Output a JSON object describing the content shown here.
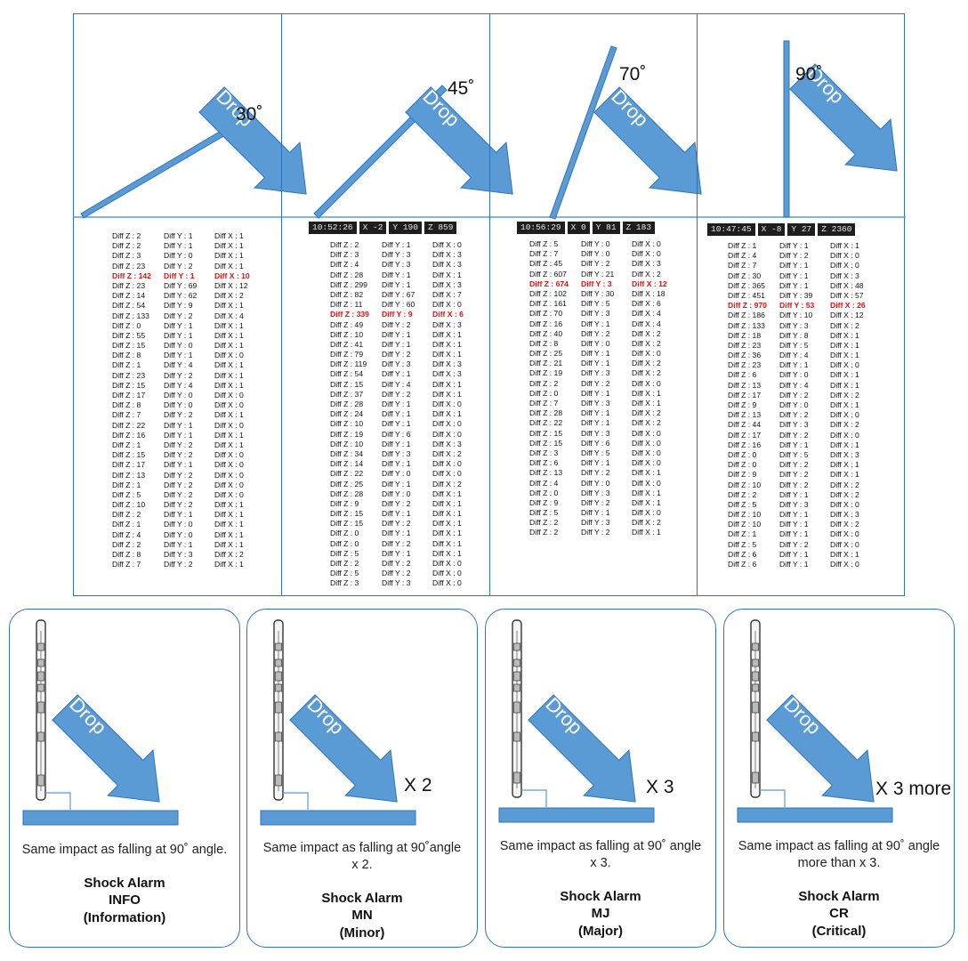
{
  "colors": {
    "accent": "#5b9bd5",
    "border": "#2e75b6",
    "highlight": "#e01010",
    "hud_bg": "#1e1e1e"
  },
  "arrow_label": "Drop",
  "panels": [
    {
      "angle_label": "30˚",
      "hud": null,
      "readings": [
        {
          "z": "Diff Z : 2",
          "y": "Diff Y : 1",
          "x": "Diff X : 1"
        },
        {
          "z": "Diff Z : 2",
          "y": "Diff Y : 1",
          "x": "Diff X : 1"
        },
        {
          "z": "Diff Z : 3",
          "y": "Diff Y : 0",
          "x": "Diff X : 1"
        },
        {
          "z": "Diff Z : 23",
          "y": "Diff Y : 2",
          "x": "Diff X : 1"
        },
        {
          "z": "Diff Z : 142",
          "y": "Diff Y : 1",
          "x": "Diff X : 10",
          "highlight": true
        },
        {
          "z": "Diff Z : 23",
          "y": "Diff Y : 69",
          "x": "Diff X : 12"
        },
        {
          "z": "Diff Z : 14",
          "y": "Diff Y : 62",
          "x": "Diff X : 2"
        },
        {
          "z": "Diff Z : 54",
          "y": "Diff Y : 9",
          "x": "Diff X : 1"
        },
        {
          "z": "Diff Z : 133",
          "y": "Diff Y : 2",
          "x": "Diff X : 4"
        },
        {
          "z": "Diff Z : 0",
          "y": "Diff Y : 1",
          "x": "Diff X : 1"
        },
        {
          "z": "Diff Z : 55",
          "y": "Diff Y : 1",
          "x": "Diff X : 1"
        },
        {
          "z": "Diff Z : 15",
          "y": "Diff Y : 0",
          "x": "Diff X : 1"
        },
        {
          "z": "Diff Z : 8",
          "y": "Diff Y : 1",
          "x": "Diff X : 0"
        },
        {
          "z": "Diff Z : 1",
          "y": "Diff Y : 4",
          "x": "Diff X : 1"
        },
        {
          "z": "Diff Z : 23",
          "y": "Diff Y : 2",
          "x": "Diff X : 1"
        },
        {
          "z": "Diff Z : 15",
          "y": "Diff Y : 4",
          "x": "Diff X : 1"
        },
        {
          "z": "Diff Z : 17",
          "y": "Diff Y : 0",
          "x": "Diff X : 0"
        },
        {
          "z": "Diff Z : 8",
          "y": "Diff Y : 0",
          "x": "Diff X : 0"
        },
        {
          "z": "Diff Z : 7",
          "y": "Diff Y : 2",
          "x": "Diff X : 1"
        },
        {
          "z": "Diff Z : 22",
          "y": "Diff Y : 1",
          "x": "Diff X : 0"
        },
        {
          "z": "Diff Z : 16",
          "y": "Diff Y : 1",
          "x": "Diff X : 1"
        },
        {
          "z": "Diff Z : 1",
          "y": "Diff Y : 2",
          "x": "Diff X : 1"
        },
        {
          "z": "Diff Z : 15",
          "y": "Diff Y : 2",
          "x": "Diff X : 0"
        },
        {
          "z": "Diff Z : 17",
          "y": "Diff Y : 1",
          "x": "Diff X : 0"
        },
        {
          "z": "Diff Z : 13",
          "y": "Diff Y : 2",
          "x": "Diff X : 0"
        },
        {
          "z": "Diff Z : 1",
          "y": "Diff Y : 2",
          "x": "Diff X : 0"
        },
        {
          "z": "Diff Z : 5",
          "y": "Diff Y : 2",
          "x": "Diff X : 0"
        },
        {
          "z": "Diff Z : 10",
          "y": "Diff Y : 2",
          "x": "Diff X : 1"
        },
        {
          "z": "Diff Z : 2",
          "y": "Diff Y : 1",
          "x": "Diff X : 1"
        },
        {
          "z": "Diff Z : 1",
          "y": "Diff Y : 0",
          "x": "Diff X : 1"
        },
        {
          "z": "Diff Z : 4",
          "y": "Diff Y : 0",
          "x": "Diff X : 1"
        },
        {
          "z": "Diff Z : 2",
          "y": "Diff Y : 1",
          "x": "Diff X : 1"
        },
        {
          "z": "Diff Z : 8",
          "y": "Diff Y : 3",
          "x": "Diff X : 2"
        },
        {
          "z": "Diff Z : 7",
          "y": "Diff Y : 2",
          "x": "Diff X : 1"
        }
      ]
    },
    {
      "angle_label": "45˚",
      "hud": {
        "time": "10:52:26",
        "x": "X -2",
        "y": "Y 190",
        "z": "Z 859"
      },
      "readings": [
        {
          "z": "Diff Z : 2",
          "y": "Diff Y : 1",
          "x": "Diff X : 0"
        },
        {
          "z": "Diff Z : 3",
          "y": "Diff Y : 3",
          "x": "Diff X : 3"
        },
        {
          "z": "Diff Z : 4",
          "y": "Diff Y : 3",
          "x": "Diff X : 3"
        },
        {
          "z": "Diff Z : 28",
          "y": "Diff Y : 1",
          "x": "Diff X : 1"
        },
        {
          "z": "Diff Z : 299",
          "y": "Diff Y : 1",
          "x": "Diff X : 3"
        },
        {
          "z": "Diff Z : 82",
          "y": "Diff Y : 67",
          "x": "Diff X : 7"
        },
        {
          "z": "Diff Z : 11",
          "y": "Diff Y : 60",
          "x": "Diff X : 0"
        },
        {
          "z": "Diff Z : 339",
          "y": "Diff Y : 9",
          "x": "Diff X : 6",
          "highlight": true
        },
        {
          "z": "Diff Z : 49",
          "y": "Diff Y : 2",
          "x": "Diff X : 3"
        },
        {
          "z": "Diff Z : 10",
          "y": "Diff Y : 1",
          "x": "Diff X : 1"
        },
        {
          "z": "Diff Z : 41",
          "y": "Diff Y : 1",
          "x": "Diff X : 1"
        },
        {
          "z": "Diff Z : 79",
          "y": "Diff Y : 2",
          "x": "Diff X : 1"
        },
        {
          "z": "Diff Z : 119",
          "y": "Diff Y : 3",
          "x": "Diff X : 3"
        },
        {
          "z": "Diff Z : 54",
          "y": "Diff Y : 1",
          "x": "Diff X : 3"
        },
        {
          "z": "Diff Z : 15",
          "y": "Diff Y : 4",
          "x": "Diff X : 1"
        },
        {
          "z": "Diff Z : 37",
          "y": "Diff Y : 2",
          "x": "Diff X : 1"
        },
        {
          "z": "Diff Z : 28",
          "y": "Diff Y : 1",
          "x": "Diff X : 0"
        },
        {
          "z": "Diff Z : 24",
          "y": "Diff Y : 1",
          "x": "Diff X : 1"
        },
        {
          "z": "Diff Z : 10",
          "y": "Diff Y : 1",
          "x": "Diff X : 0"
        },
        {
          "z": "Diff Z : 19",
          "y": "Diff Y : 6",
          "x": "Diff X : 0"
        },
        {
          "z": "Diff Z : 10",
          "y": "Diff Y : 1",
          "x": "Diff X : 3"
        },
        {
          "z": "Diff Z : 34",
          "y": "Diff Y : 3",
          "x": "Diff X : 2"
        },
        {
          "z": "Diff Z : 14",
          "y": "Diff Y : 1",
          "x": "Diff X : 0"
        },
        {
          "z": "Diff Z : 22",
          "y": "Diff Y : 0",
          "x": "Diff X : 0"
        },
        {
          "z": "Diff Z : 25",
          "y": "Diff Y : 1",
          "x": "Diff X : 2"
        },
        {
          "z": "Diff Z : 28",
          "y": "Diff Y : 0",
          "x": "Diff X : 1"
        },
        {
          "z": "Diff Z : 9",
          "y": "Diff Y : 2",
          "x": "Diff X : 1"
        },
        {
          "z": "Diff Z : 15",
          "y": "Diff Y : 1",
          "x": "Diff X : 1"
        },
        {
          "z": "Diff Z : 15",
          "y": "Diff Y : 2",
          "x": "Diff X : 1"
        },
        {
          "z": "Diff Z : 0",
          "y": "Diff Y : 1",
          "x": "Diff X : 1"
        },
        {
          "z": "Diff Z : 0",
          "y": "Diff Y : 2",
          "x": "Diff X : 1"
        },
        {
          "z": "Diff Z : 5",
          "y": "Diff Y : 1",
          "x": "Diff X : 1"
        },
        {
          "z": "Diff Z : 2",
          "y": "Diff Y : 2",
          "x": "Diff X : 0"
        },
        {
          "z": "Diff Z : 5",
          "y": "Diff Y : 2",
          "x": "Diff X : 0"
        },
        {
          "z": "Diff Z : 3",
          "y": "Diff Y : 3",
          "x": "Diff X : 0"
        }
      ]
    },
    {
      "angle_label": "70˚",
      "hud": {
        "time": "10:56:29",
        "x": "X 0",
        "y": "Y 81",
        "z": "Z 183"
      },
      "readings": [
        {
          "z": "Diff Z : 5",
          "y": "Diff Y : 0",
          "x": "Diff X : 0"
        },
        {
          "z": "Diff Z : 7",
          "y": "Diff Y : 0",
          "x": "Diff X : 0"
        },
        {
          "z": "Diff Z : 45",
          "y": "Diff Y : 2",
          "x": "Diff X : 3"
        },
        {
          "z": "Diff Z : 607",
          "y": "Diff Y : 21",
          "x": "Diff X : 2"
        },
        {
          "z": "Diff Z : 674",
          "y": "Diff Y : 3",
          "x": "Diff X : 12",
          "highlight": true
        },
        {
          "z": "Diff Z : 102",
          "y": "Diff Y : 30",
          "x": "Diff X : 18"
        },
        {
          "z": "Diff Z : 161",
          "y": "Diff Y : 5",
          "x": "Diff X : 6"
        },
        {
          "z": "Diff Z : 70",
          "y": "Diff Y : 3",
          "x": "Diff X : 4"
        },
        {
          "z": "Diff Z : 16",
          "y": "Diff Y : 1",
          "x": "Diff X : 4"
        },
        {
          "z": "Diff Z : 40",
          "y": "Diff Y : 2",
          "x": "Diff X : 2"
        },
        {
          "z": "Diff Z : 8",
          "y": "Diff Y : 0",
          "x": "Diff X : 2"
        },
        {
          "z": "Diff Z : 25",
          "y": "Diff Y : 1",
          "x": "Diff X : 0"
        },
        {
          "z": "Diff Z : 21",
          "y": "Diff Y : 1",
          "x": "Diff X : 2"
        },
        {
          "z": "Diff Z : 19",
          "y": "Diff Y : 3",
          "x": "Diff X : 2"
        },
        {
          "z": "Diff Z : 2",
          "y": "Diff Y : 2",
          "x": "Diff X : 0"
        },
        {
          "z": "Diff Z : 0",
          "y": "Diff Y : 1",
          "x": "Diff X : 1"
        },
        {
          "z": "Diff Z : 7",
          "y": "Diff Y : 3",
          "x": "Diff X : 1"
        },
        {
          "z": "Diff Z : 28",
          "y": "Diff Y : 1",
          "x": "Diff X : 2"
        },
        {
          "z": "Diff Z : 22",
          "y": "Diff Y : 1",
          "x": "Diff X : 2"
        },
        {
          "z": "Diff Z : 15",
          "y": "Diff Y : 3",
          "x": "Diff X : 0"
        },
        {
          "z": "Diff Z : 15",
          "y": "Diff Y : 6",
          "x": "Diff X : 0"
        },
        {
          "z": "Diff Z : 3",
          "y": "Diff Y : 5",
          "x": "Diff X : 0"
        },
        {
          "z": "Diff Z : 6",
          "y": "Diff Y : 1",
          "x": "Diff X : 0"
        },
        {
          "z": "Diff Z : 13",
          "y": "Diff Y : 2",
          "x": "Diff X : 1"
        },
        {
          "z": "Diff Z : 4",
          "y": "Diff Y : 0",
          "x": "Diff X : 0"
        },
        {
          "z": "Diff Z : 0",
          "y": "Diff Y : 3",
          "x": "Diff X : 1"
        },
        {
          "z": "Diff Z : 9",
          "y": "Diff Y : 2",
          "x": "Diff X : 1"
        },
        {
          "z": "Diff Z : 5",
          "y": "Diff Y : 1",
          "x": "Diff X : 0"
        },
        {
          "z": "Diff Z : 2",
          "y": "Diff Y : 3",
          "x": "Diff X : 2"
        },
        {
          "z": "Diff Z : 2",
          "y": "Diff Y : 2",
          "x": "Diff X : 1"
        }
      ]
    },
    {
      "angle_label": "90˚",
      "hud": {
        "time": "10:47:45",
        "x": "X -8",
        "y": "Y 27",
        "z": "Z 2360"
      },
      "readings": [
        {
          "z": "Diff Z : 1",
          "y": "Diff Y : 1",
          "x": "Diff X : 1"
        },
        {
          "z": "Diff Z : 4",
          "y": "Diff Y : 2",
          "x": "Diff X : 0"
        },
        {
          "z": "Diff Z : 7",
          "y": "Diff Y : 1",
          "x": "Diff X : 0"
        },
        {
          "z": "Diff Z : 30",
          "y": "Diff Y : 1",
          "x": "Diff X : 3"
        },
        {
          "z": "Diff Z : 365",
          "y": "Diff Y : 1",
          "x": "Diff X : 48"
        },
        {
          "z": "Diff Z : 451",
          "y": "Diff Y : 39",
          "x": "Diff X : 57"
        },
        {
          "z": "Diff Z : 970",
          "y": "Diff Y : 53",
          "x": "Diff X : 26",
          "highlight": true
        },
        {
          "z": "Diff Z : 186",
          "y": "Diff Y : 10",
          "x": "Diff X : 12"
        },
        {
          "z": "Diff Z : 133",
          "y": "Diff Y : 3",
          "x": "Diff X : 2"
        },
        {
          "z": "Diff Z : 18",
          "y": "Diff Y : 8",
          "x": "Diff X : 1"
        },
        {
          "z": "Diff Z : 23",
          "y": "Diff Y : 5",
          "x": "Diff X : 1"
        },
        {
          "z": "Diff Z : 36",
          "y": "Diff Y : 4",
          "x": "Diff X : 1"
        },
        {
          "z": "Diff Z : 23",
          "y": "Diff Y : 1",
          "x": "Diff X : 0"
        },
        {
          "z": "Diff Z : 6",
          "y": "Diff Y : 0",
          "x": "Diff X : 1"
        },
        {
          "z": "Diff Z : 13",
          "y": "Diff Y : 4",
          "x": "Diff X : 1"
        },
        {
          "z": "Diff Z : 17",
          "y": "Diff Y : 2",
          "x": "Diff X : 2"
        },
        {
          "z": "Diff Z : 9",
          "y": "Diff Y : 0",
          "x": "Diff X : 1"
        },
        {
          "z": "Diff Z : 13",
          "y": "Diff Y : 2",
          "x": "Diff X : 0"
        },
        {
          "z": "Diff Z : 44",
          "y": "Diff Y : 3",
          "x": "Diff X : 2"
        },
        {
          "z": "Diff Z : 17",
          "y": "Diff Y : 2",
          "x": "Diff X : 0"
        },
        {
          "z": "Diff Z : 16",
          "y": "Diff Y : 1",
          "x": "Diff X : 1"
        },
        {
          "z": "Diff Z : 0",
          "y": "Diff Y : 5",
          "x": "Diff X : 3"
        },
        {
          "z": "Diff Z : 0",
          "y": "Diff Y : 2",
          "x": "Diff X : 1"
        },
        {
          "z": "Diff Z : 9",
          "y": "Diff Y : 2",
          "x": "Diff X : 1"
        },
        {
          "z": "Diff Z : 10",
          "y": "Diff Y : 2",
          "x": "Diff X : 2"
        },
        {
          "z": "Diff Z : 2",
          "y": "Diff Y : 1",
          "x": "Diff X : 2"
        },
        {
          "z": "Diff Z : 5",
          "y": "Diff Y : 3",
          "x": "Diff X : 0"
        },
        {
          "z": "Diff Z : 10",
          "y": "Diff Y : 1",
          "x": "Diff X : 3"
        },
        {
          "z": "Diff Z : 10",
          "y": "Diff Y : 1",
          "x": "Diff X : 2"
        },
        {
          "z": "Diff Z : 1",
          "y": "Diff Y : 1",
          "x": "Diff X : 0"
        },
        {
          "z": "Diff Z : 5",
          "y": "Diff Y : 2",
          "x": "Diff X : 0"
        },
        {
          "z": "Diff Z : 6",
          "y": "Diff Y : 1",
          "x": "Diff X : 1"
        },
        {
          "z": "Diff Z : 6",
          "y": "Diff Y : 1",
          "x": "Diff X : 0"
        }
      ]
    }
  ],
  "cards": [
    {
      "multiplier": "",
      "desc1": "Same impact as falling at 90˚ angle.",
      "desc2": "",
      "alarm": [
        "Shock Alarm",
        "INFO",
        "(Information)"
      ]
    },
    {
      "multiplier": "X 2",
      "desc1": "Same impact as falling at 90˚angle",
      "desc2": "x 2.",
      "alarm": [
        "Shock Alarm",
        "MN",
        "(Minor)"
      ]
    },
    {
      "multiplier": "X 3",
      "desc1": "Same impact as falling at 90˚ angle",
      "desc2": "x 3.",
      "alarm": [
        "Shock Alarm",
        "MJ",
        "(Major)"
      ]
    },
    {
      "multiplier": "X 3 more",
      "desc1": "Same impact as falling at 90˚ angle",
      "desc2": "more than x 3.",
      "alarm": [
        "Shock Alarm",
        "CR",
        "(Critical)"
      ]
    }
  ]
}
